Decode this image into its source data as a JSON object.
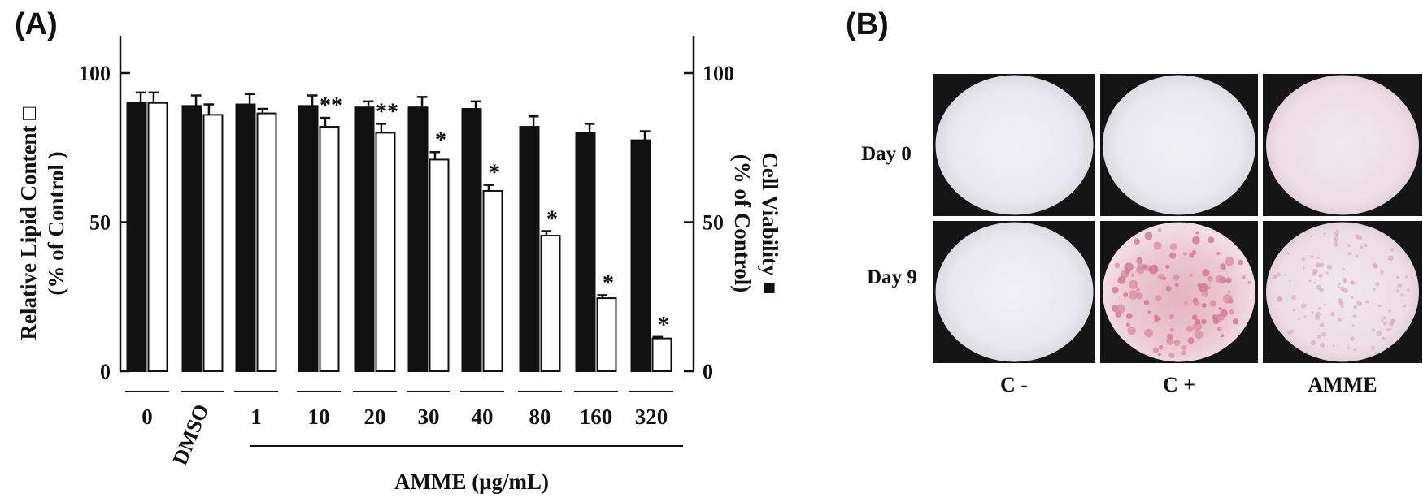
{
  "panels": {
    "a_label": "(A)",
    "b_label": "(B)"
  },
  "chart_data": {
    "type": "bar",
    "categories": [
      "0",
      "DMSO",
      "1",
      "10",
      "20",
      "30",
      "40",
      "80",
      "160",
      "320"
    ],
    "xlabel": "AMME (μg/mL)",
    "ylabel_left": [
      "Relative Lipid Content □",
      "(% of Control )"
    ],
    "ylabel_right": [
      "Cell Viability ■",
      "(% of Control)"
    ],
    "ylim": [
      0,
      110
    ],
    "yticks": [
      0,
      50,
      100
    ],
    "grid": false,
    "legend": "none",
    "series": [
      {
        "style": "filled",
        "color": "#111111",
        "values": [
          90,
          89,
          89.5,
          89,
          88.5,
          88.5,
          88,
          82,
          80,
          77.5
        ],
        "errors": [
          3.5,
          3.5,
          3.5,
          3.5,
          2,
          3.5,
          2.5,
          3.5,
          3,
          3
        ]
      },
      {
        "style": "open",
        "color": "#ffffff",
        "values": [
          90,
          86,
          86.5,
          82,
          80,
          71,
          60.5,
          45.5,
          24.5,
          11
        ],
        "errors": [
          3.5,
          3.5,
          1.5,
          3,
          3,
          2.5,
          2,
          1.5,
          1,
          0.5
        ],
        "significance": [
          "",
          "",
          "",
          "**",
          "**",
          "*",
          "*",
          "*",
          "*",
          "*"
        ]
      }
    ]
  },
  "micrographs": {
    "rows": [
      "Day 0",
      "Day 9"
    ],
    "columns": [
      "C -",
      "C +",
      "AMME"
    ]
  }
}
